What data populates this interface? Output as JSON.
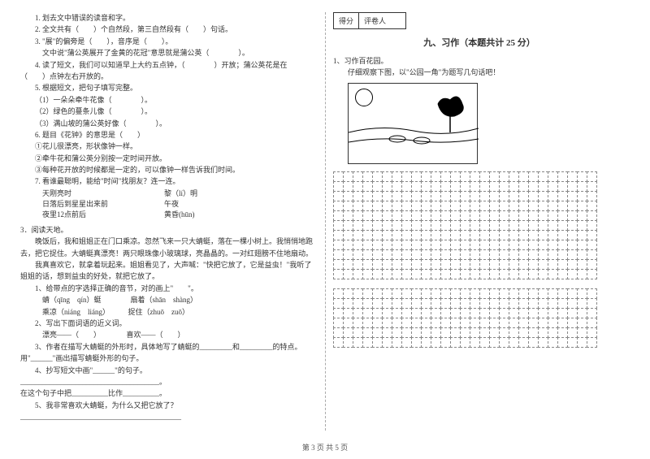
{
  "left": {
    "q1": "1. 划去文中错误的读音和字。",
    "q2": "2. 全文共有（　　）个自然段，第三自然段有（　　）句话。",
    "q3a": "3. \"展\"的偏旁是（　　），音序是（　　）。",
    "q3b": "文中说\"蒲公英展开了金黄的花冠\"意思就是蒲公英（　　　　）。",
    "q4": "4. 读了短文，我们可以知道早上大约五点钟，（　　　　）开放；蒲公英花是在（　　）点钟左右开放的。",
    "q5": "5. 根据短文，把句子填写完整。",
    "q5a": "（1）一朵朵牵牛花像（　　　　）。",
    "q5b": "（2）绿色的蔓条儿像（　　　　）。",
    "q5c": "（3）满山坡的蒲公英好像（　　　　）。",
    "q6": "6. 题目《花钟》的意思是（　　）",
    "q6a": "①花儿很漂亮，形状像钟一样。",
    "q6b": "②牵牛花和蒲公英分别按一定时间开放。",
    "q6c": "③每种花开放的时候都是一定的，可以像钟一样告诉我们时间。",
    "q7": "7. 看谁最聪明，能给\"时间\"找朋友？连一连。",
    "q7l1": "天刚亮时",
    "q7r1": "黎（lí）明",
    "q7l2": "日落后到星星出来前",
    "q7r2": "午夜",
    "q7l3": "夜里12点前后",
    "q7r3": "黄昏(hūn)",
    "p3": "3．阅读天地。",
    "p3t1": "晚饭后，我和姐姐正在门口乘凉。忽然飞来一只大蜻蜓，落在一棵小树上。我悄悄地跑去，把它捉住。大蜻蜓真漂亮！两只眼珠像小玻璃球，亮晶晶的。一对红翅膀不住地扇动。",
    "p3t2": "我真喜欢它，就拿着玩起来。姐姐看见了，大声喊：\"快把它放了，它是益虫！\"我听了姐姐的话，想到益虫的好处，就把它放了。",
    "p3q1": "1、给带点的字选择正确的音节，对的画上\"　　\"。",
    "p3q1a": "蜻（qīng　qín）蜓　　　　扇着（shān　shàng）",
    "p3q1b": "乘凉（niáng　liáng）　　　捉住（zhuō　zuō）",
    "p3q2": "2、写出下面词语的近义词。",
    "p3q2a": "漂亮——（　　）　　　　喜欢——（　　）",
    "p3q3a": "3、作者在描写大蜻蜓的外形时，具体地写了蜻蜓的_________和_________的特点。",
    "p3q3b": "用\"______\"画出描写蜻蜓外形的句子。",
    "p3q4": "4、抄写短文中画\"______\"的句子。",
    "p3q4a": "______________________________________。",
    "p3q4b": "在这个句子中把__________比作__________。",
    "p3q5": "5、我非常喜欢大蜻蜓，为什么又把它放了？",
    "p3q5a": "____________________________________________"
  },
  "right": {
    "scoreLabel1": "得分",
    "scoreLabel2": "评卷人",
    "sectionTitle": "九、习作（本题共计 25 分）",
    "q1": "1、习作百花园。",
    "q1a": "仔细观察下图，以\"公园一角\"为题写几句话吧！"
  },
  "footer": "第 3 页 共 5 页",
  "grid": {
    "rows1": 11,
    "rows2": 6,
    "cols": 27
  }
}
